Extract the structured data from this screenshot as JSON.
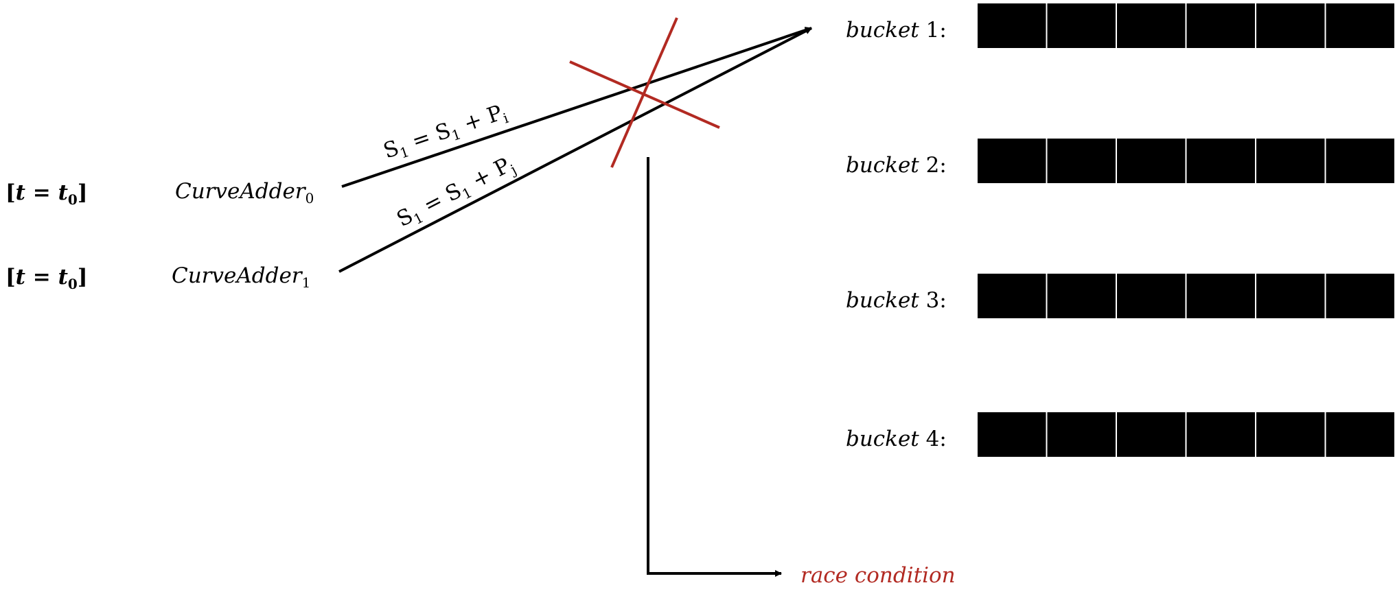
{
  "time_labels": [
    {
      "bracket_open": "[",
      "var": "t",
      "eq": " = ",
      "var2": "t",
      "sub": "0",
      "bracket_close": "]"
    },
    {
      "bracket_open": "[",
      "var": "t",
      "eq": " = ",
      "var2": "t",
      "sub": "0",
      "bracket_close": "]"
    }
  ],
  "adders": [
    {
      "name": "CurveAdder",
      "sub": "0"
    },
    {
      "name": "CurveAdder",
      "sub": "1"
    }
  ],
  "equations": [
    {
      "lhs": "S",
      "lhs_sub": "1",
      "eq": " = ",
      "rhs": "S",
      "rhs_sub": "1",
      "plus": " + ",
      "p": "P",
      "p_sub": "i"
    },
    {
      "lhs": "S",
      "lhs_sub": "1",
      "eq": " = ",
      "rhs": "S",
      "rhs_sub": "1",
      "plus": " + ",
      "p": "P",
      "p_sub": "j"
    }
  ],
  "buckets": [
    {
      "word": "bucket",
      "num": " 1:",
      "slots": 6
    },
    {
      "word": "bucket",
      "num": " 2:",
      "slots": 6
    },
    {
      "word": "bucket",
      "num": " 3:",
      "slots": 6
    },
    {
      "word": "bucket",
      "num": " 4:",
      "slots": 6
    }
  ],
  "race_label": "race condition",
  "colors": {
    "ink": "#000000",
    "conflict": "#b22a22",
    "slot_fill": "#000000",
    "slot_divider": "#ffffff"
  }
}
